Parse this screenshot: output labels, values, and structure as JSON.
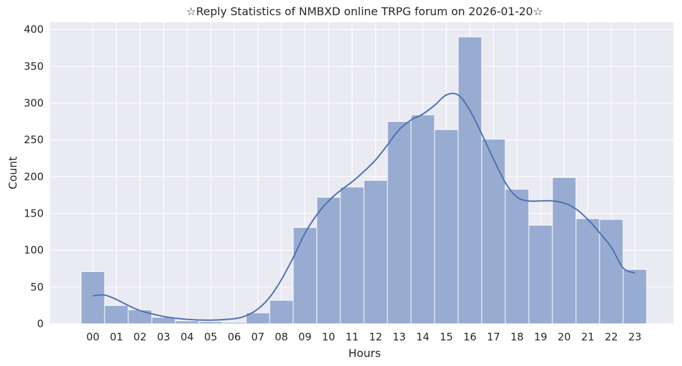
{
  "chart_data": {
    "type": "bar",
    "title": "☆Reply Statistics of NMBXD online TRPG forum on 2026-01-20☆",
    "xlabel": "Hours",
    "ylabel": "Count",
    "categories": [
      "00",
      "01",
      "02",
      "03",
      "04",
      "05",
      "06",
      "07",
      "08",
      "09",
      "10",
      "11",
      "12",
      "13",
      "14",
      "15",
      "16",
      "17",
      "18",
      "19",
      "20",
      "21",
      "22",
      "23"
    ],
    "values": [
      71,
      25,
      19,
      9,
      4,
      3,
      2,
      15,
      32,
      131,
      172,
      186,
      195,
      275,
      284,
      264,
      390,
      251,
      183,
      134,
      199,
      143,
      142,
      74
    ],
    "yticks": [
      0,
      50,
      100,
      150,
      200,
      250,
      300,
      350,
      400
    ],
    "ylim": [
      0,
      410
    ],
    "grid": true,
    "kde": {
      "name": "",
      "x_hours": [
        0,
        0.5,
        1,
        1.5,
        2,
        3,
        4,
        5,
        6,
        6.5,
        7,
        7.5,
        8,
        8.5,
        9,
        9.5,
        10,
        10.5,
        11,
        11.5,
        12,
        12.5,
        13,
        13.5,
        14,
        14.5,
        15,
        15.5,
        16,
        16.5,
        17,
        17.5,
        18,
        18.5,
        19,
        19.5,
        20,
        20.5,
        21,
        21.5,
        22,
        22.5,
        23
      ],
      "values": [
        38,
        39,
        33,
        25,
        18,
        10,
        6,
        5,
        7,
        11,
        20,
        36,
        60,
        90,
        123,
        148,
        167,
        181,
        193,
        207,
        223,
        243,
        264,
        277,
        285,
        297,
        311,
        311,
        290,
        258,
        224,
        192,
        172,
        167,
        167,
        167,
        164,
        156,
        142,
        124,
        104,
        76,
        69
      ]
    },
    "colors": {
      "bar_fill": "#98acd2",
      "bar_edge": "#ffffff",
      "kde_line": "#4c72b0",
      "plot_bg": "#eaeaf2",
      "grid": "#ffffff"
    }
  }
}
